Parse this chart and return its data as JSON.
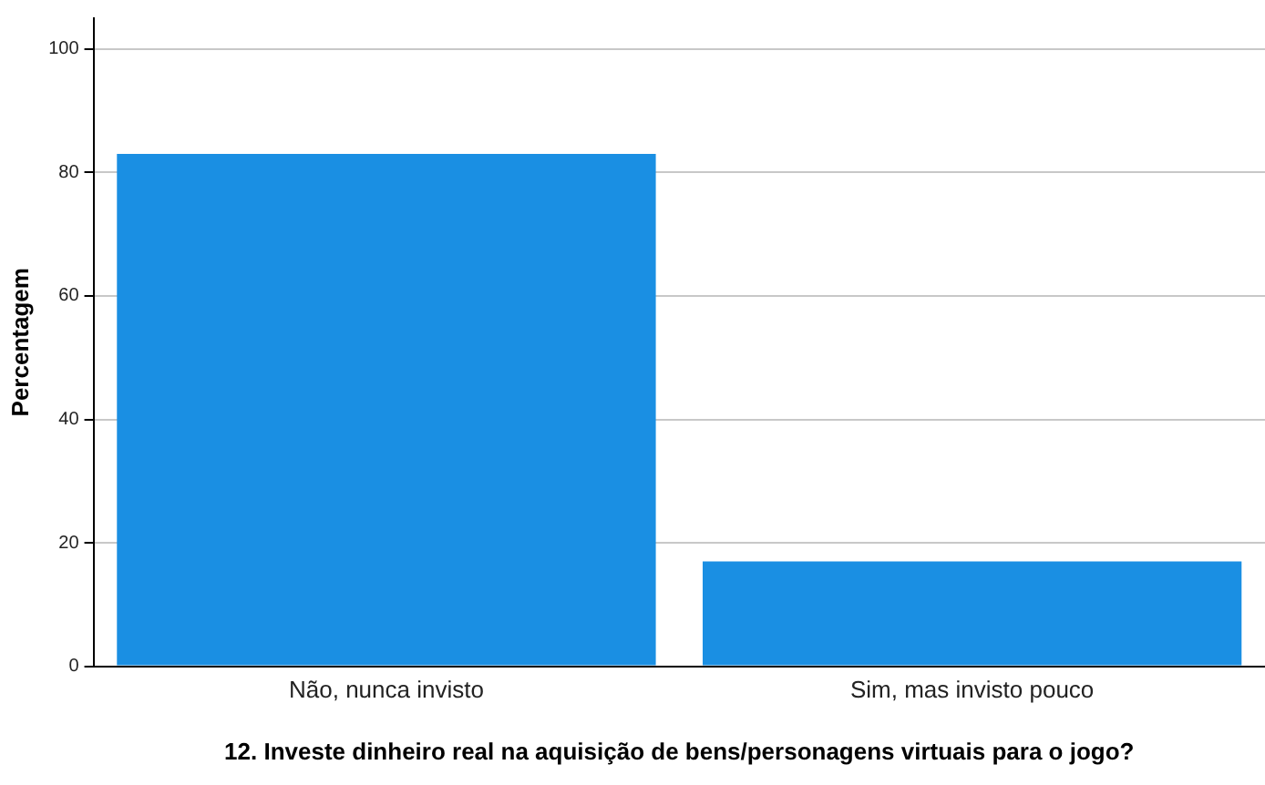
{
  "chart_data": {
    "type": "bar",
    "xlabel": "12. Investe dinheiro real na aquisição de bens/personagens virtuais para o jogo?",
    "ylabel": "Percentagem",
    "categories": [
      "Não, nunca invisto",
      "Sim, mas invisto pouco"
    ],
    "values": [
      83,
      17
    ],
    "color": "#1a8fe3",
    "ylim": [
      0,
      105
    ],
    "yticks": [
      0,
      20,
      40,
      60,
      80,
      100
    ],
    "grid": "y",
    "legend": false
  }
}
